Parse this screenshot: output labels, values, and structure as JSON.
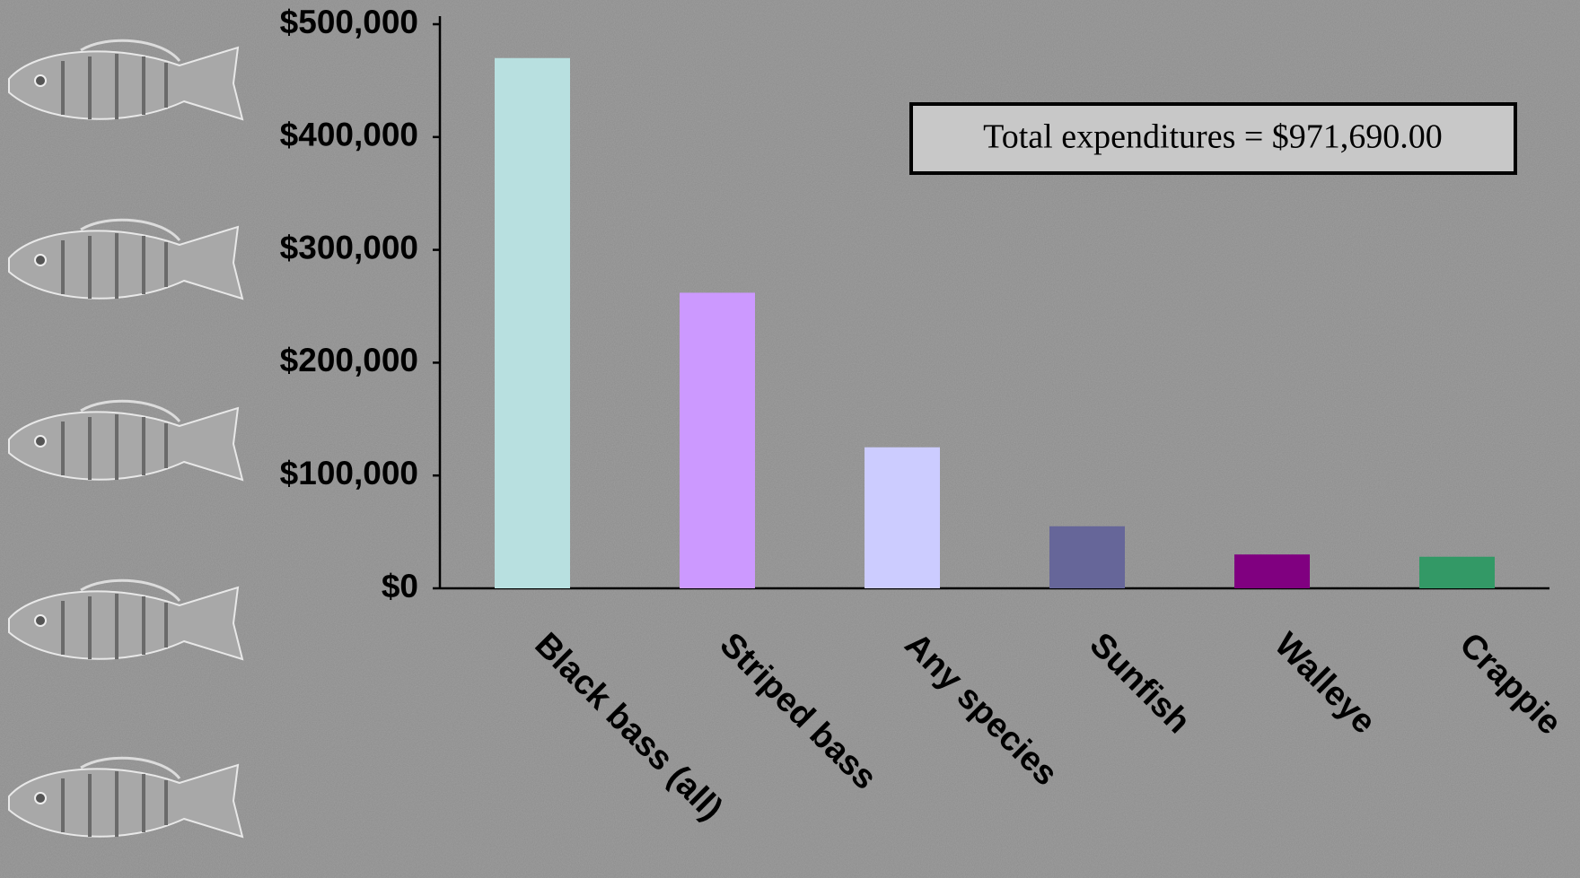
{
  "chart_data": {
    "type": "bar",
    "categories": [
      "Black bass (all)",
      "Striped bass",
      "Any species",
      "Sunfish",
      "Walleye",
      "Crappie"
    ],
    "values": [
      470000,
      262000,
      125000,
      55000,
      30000,
      28000
    ],
    "colors": [
      "#b8e0e0",
      "#cc99ff",
      "#ccccff",
      "#666699",
      "#800080",
      "#339966"
    ],
    "ylim": [
      0,
      500000
    ],
    "yticks": [
      {
        "value": 0,
        "label": "$0"
      },
      {
        "value": 100000,
        "label": "$100,000"
      },
      {
        "value": 200000,
        "label": "$200,000"
      },
      {
        "value": 300000,
        "label": "$300,000"
      },
      {
        "value": 400000,
        "label": "$400,000"
      },
      {
        "value": 500000,
        "label": "$500,000"
      }
    ],
    "grid": false,
    "annotation": "Total expenditures = $971,690.00"
  }
}
